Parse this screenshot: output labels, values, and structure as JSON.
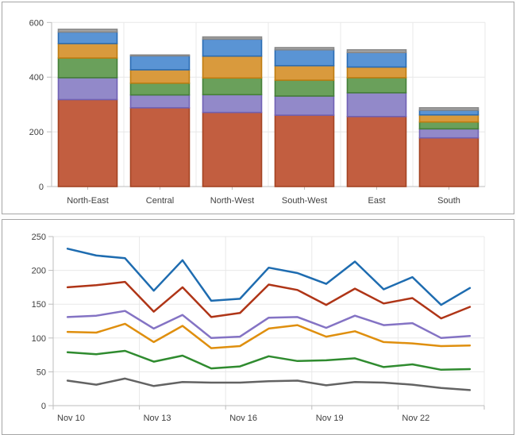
{
  "page": {
    "background": "#fdfdfd",
    "panel_background": "#ffffff",
    "panel_border": "#a6a6a6",
    "grid_color": "#e8e8e8",
    "axis_color": "#bdbdbd",
    "label_color": "#3f3f3f"
  },
  "chart_data": [
    {
      "type": "bar",
      "subtype": "stacked",
      "title": "",
      "categories": [
        "North-East",
        "Central",
        "North-West",
        "South-West",
        "East",
        "South"
      ],
      "series": [
        {
          "name": "brown",
          "fill": "#c25e40",
          "stroke": "#a34423",
          "values": [
            318,
            288,
            271,
            261,
            256,
            178
          ]
        },
        {
          "name": "purple",
          "fill": "#9289c9",
          "stroke": "#7061b4",
          "values": [
            80,
            47,
            65,
            70,
            87,
            33
          ]
        },
        {
          "name": "green",
          "fill": "#6aa05b",
          "stroke": "#457f38",
          "values": [
            72,
            43,
            61,
            58,
            55,
            25
          ]
        },
        {
          "name": "orange",
          "fill": "#d99a3d",
          "stroke": "#bf7d12",
          "values": [
            53,
            49,
            80,
            53,
            39,
            26
          ]
        },
        {
          "name": "blue",
          "fill": "#5a94d4",
          "stroke": "#2a6cb3",
          "values": [
            42,
            51,
            62,
            58,
            53,
            17
          ]
        },
        {
          "name": "gray",
          "fill": "#a6a6a6",
          "stroke": "#878787",
          "values": [
            10,
            3,
            8,
            8,
            10,
            9
          ]
        }
      ],
      "totals": [
        575,
        481,
        547,
        508,
        500,
        288
      ],
      "xlabel": "",
      "ylabel": "",
      "ylim": [
        0,
        600
      ],
      "yticks": [
        0,
        200,
        400,
        600
      ],
      "grid": true,
      "legend": "none"
    },
    {
      "type": "line",
      "title": "",
      "x": [
        "Nov 10",
        "Nov 11",
        "Nov 12",
        "Nov 13",
        "Nov 14",
        "Nov 15",
        "Nov 16",
        "Nov 17",
        "Nov 18",
        "Nov 19",
        "Nov 20",
        "Nov 21",
        "Nov 22",
        "Nov 23",
        "Nov 24"
      ],
      "xtick_labels": [
        "Nov 10",
        "Nov 13",
        "Nov 16",
        "Nov 19",
        "Nov 22"
      ],
      "xtick_every": 3,
      "series": [
        {
          "name": "blue",
          "color": "#1e6cb0",
          "values": [
            232,
            222,
            218,
            170,
            215,
            155,
            158,
            204,
            196,
            180,
            213,
            172,
            190,
            149,
            174
          ]
        },
        {
          "name": "red",
          "color": "#af3517",
          "values": [
            175,
            178,
            183,
            139,
            175,
            131,
            137,
            179,
            171,
            149,
            173,
            151,
            159,
            129,
            146
          ]
        },
        {
          "name": "purple",
          "color": "#8473c4",
          "values": [
            131,
            133,
            140,
            114,
            134,
            100,
            102,
            130,
            131,
            115,
            133,
            119,
            122,
            100,
            103
          ]
        },
        {
          "name": "orange",
          "color": "#df8f0e",
          "values": [
            109,
            108,
            121,
            94,
            118,
            85,
            88,
            114,
            119,
            102,
            110,
            94,
            92,
            88,
            89
          ]
        },
        {
          "name": "green",
          "color": "#2f8b2f",
          "values": [
            79,
            76,
            81,
            65,
            74,
            55,
            58,
            73,
            66,
            67,
            70,
            57,
            61,
            53,
            54
          ]
        },
        {
          "name": "gray",
          "color": "#636363",
          "values": [
            37,
            31,
            40,
            29,
            35,
            34,
            34,
            36,
            37,
            30,
            35,
            34,
            31,
            26,
            23
          ]
        }
      ],
      "xlabel": "",
      "ylabel": "",
      "ylim": [
        0,
        250
      ],
      "yticks": [
        0,
        50,
        100,
        150,
        200,
        250
      ],
      "grid": true,
      "legend": "none"
    }
  ]
}
